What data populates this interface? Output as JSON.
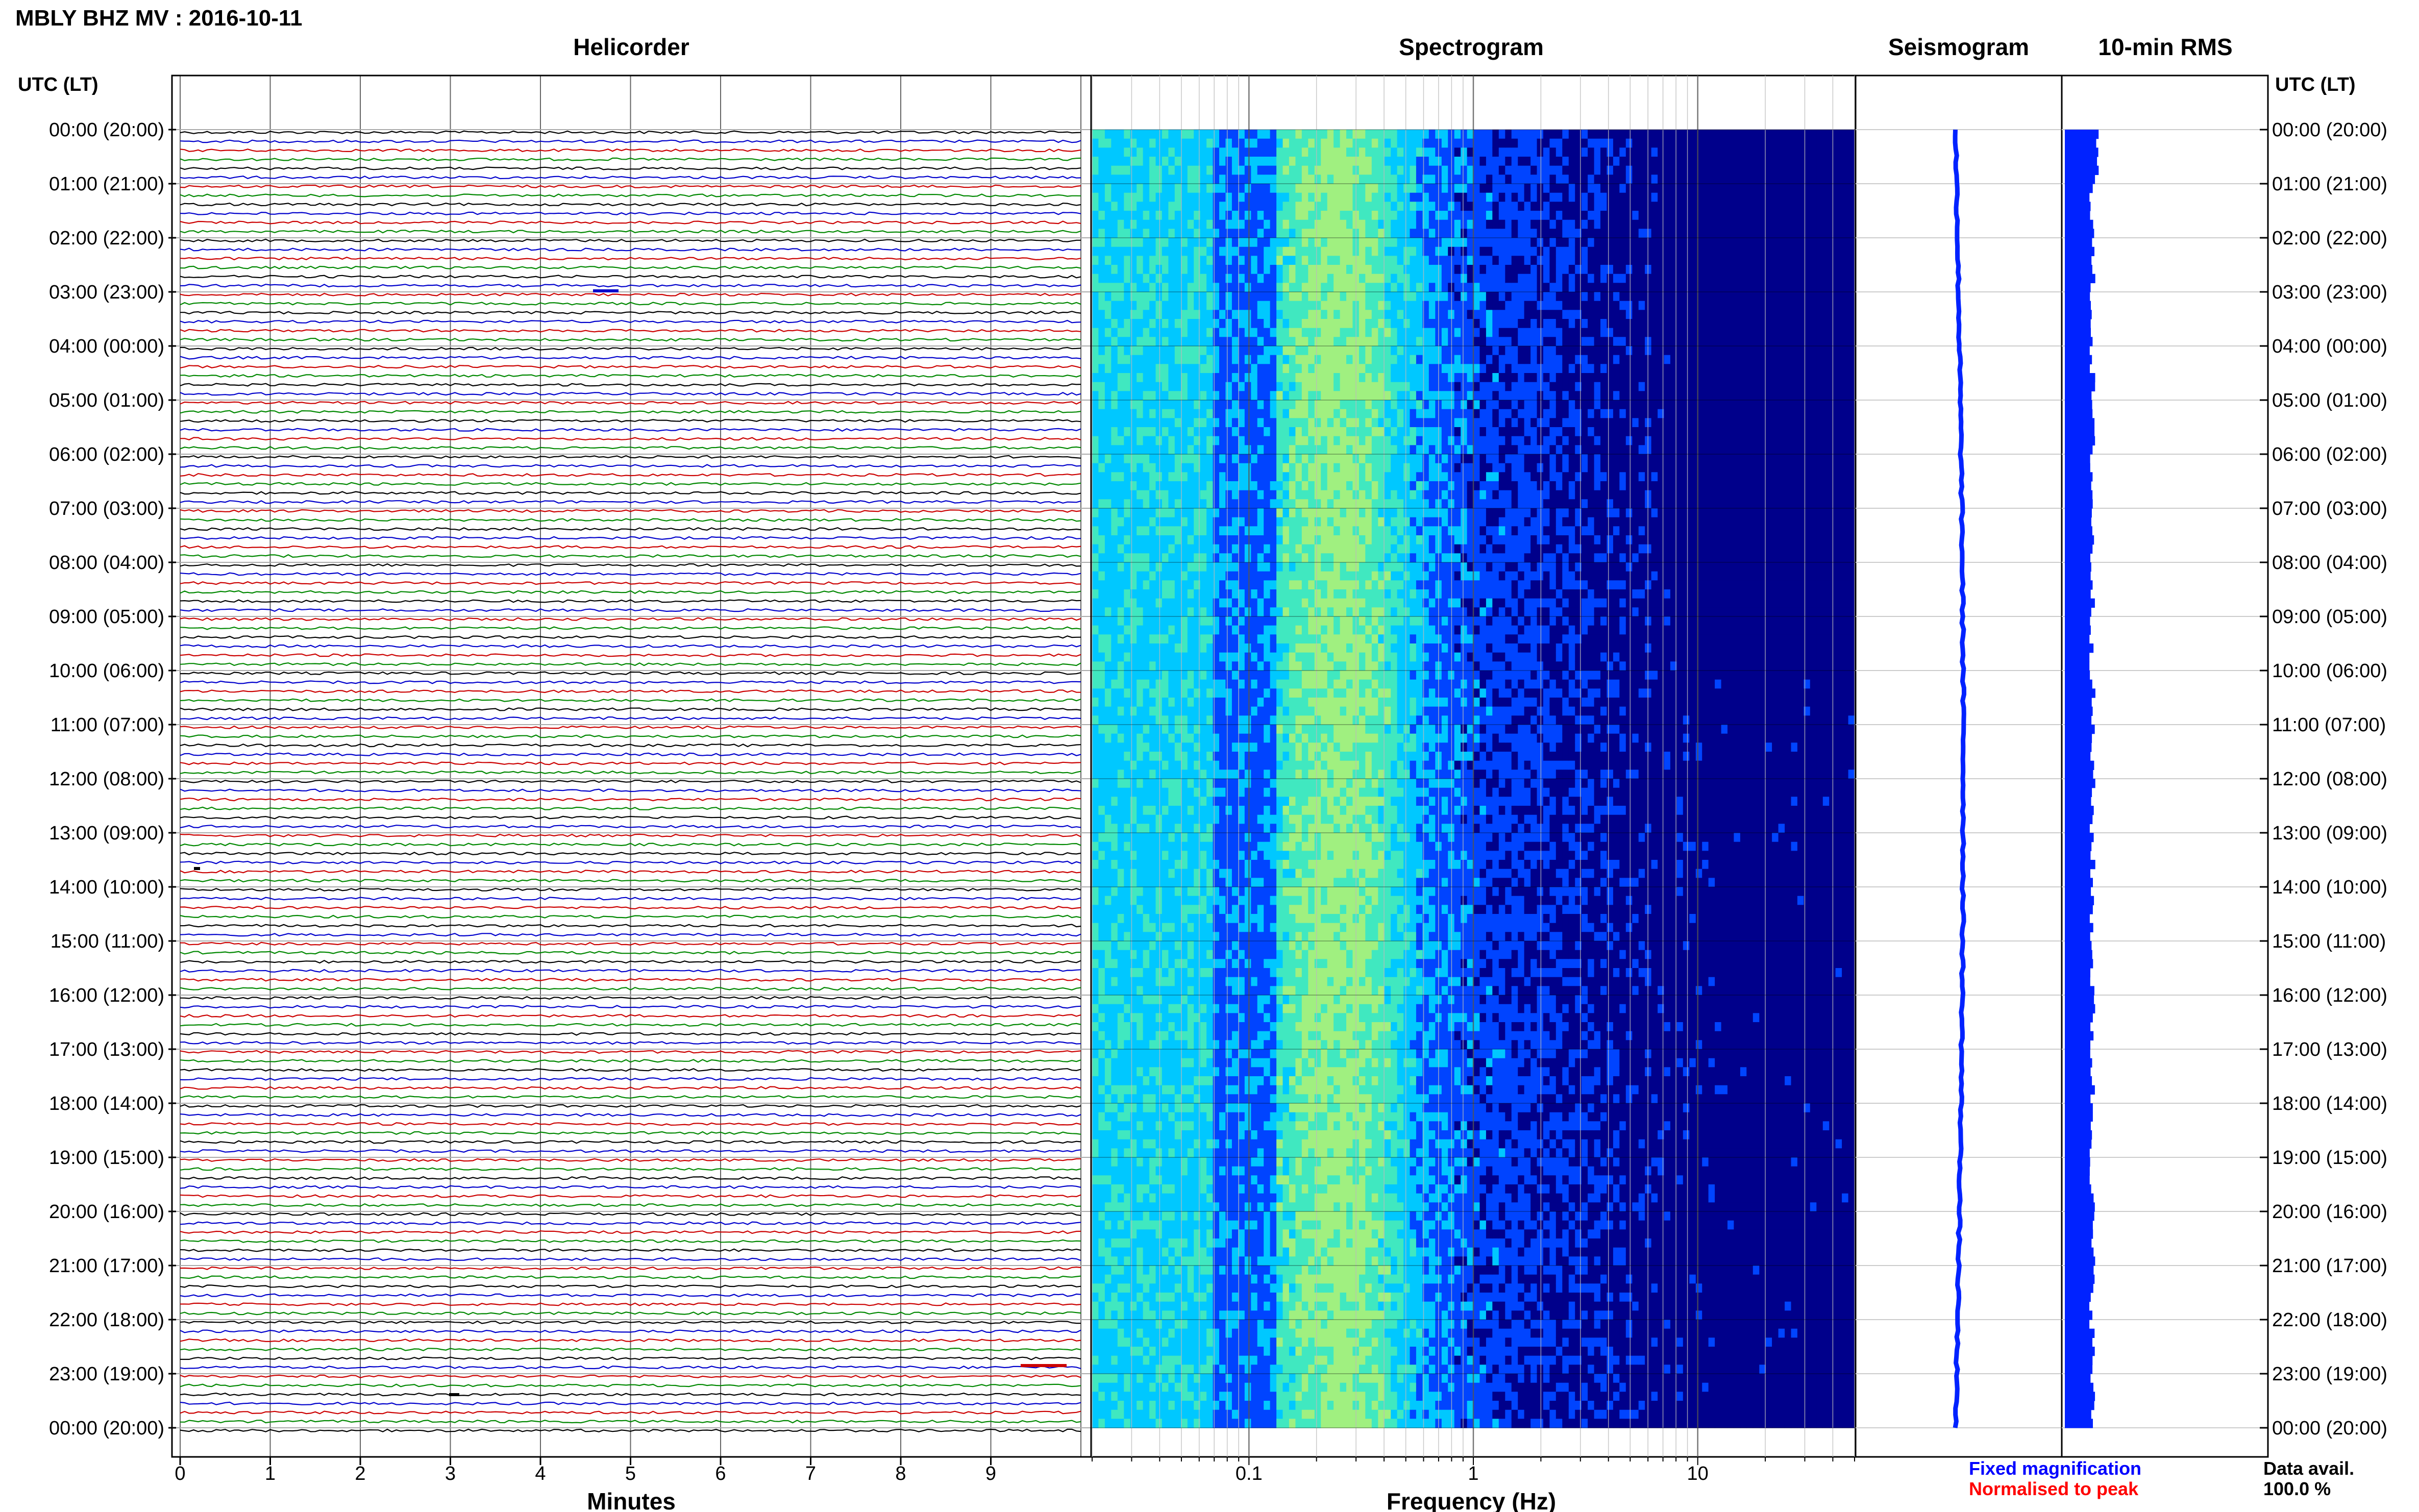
{
  "header": {
    "title": "MBLY BHZ MV : 2016-10-11"
  },
  "time_axis": {
    "left_label": "UTC (LT)",
    "right_label": "UTC (LT)",
    "ticks": [
      "00:00 (20:00)",
      "01:00 (21:00)",
      "02:00 (22:00)",
      "03:00 (23:00)",
      "04:00 (00:00)",
      "05:00 (01:00)",
      "06:00 (02:00)",
      "07:00 (03:00)",
      "08:00 (04:00)",
      "09:00 (05:00)",
      "10:00 (06:00)",
      "11:00 (07:00)",
      "12:00 (08:00)",
      "13:00 (09:00)",
      "14:00 (10:00)",
      "15:00 (11:00)",
      "16:00 (12:00)",
      "17:00 (13:00)",
      "18:00 (14:00)",
      "19:00 (15:00)",
      "20:00 (16:00)",
      "21:00 (17:00)",
      "22:00 (18:00)",
      "23:00 (19:00)",
      "00:00 (20:00)"
    ]
  },
  "footer": {
    "legend_fixed": "Fixed magnification",
    "legend_normalised": "Normalised to peak",
    "data_avail_label": "Data avail.",
    "data_avail_value": "100.0 %"
  },
  "colors": {
    "trace_cycle": [
      "#000000",
      "#0000cc",
      "#cc0000",
      "#008800"
    ],
    "seismogram": "#0022ff",
    "rms": "#0022ff",
    "fixed_magnification": "#0000ff",
    "normalised_to_peak": "#ff0000"
  },
  "chart_data": [
    {
      "type": "line",
      "title": "Helicorder",
      "xlabel": "Minutes",
      "ylabel": "UTC (LT)",
      "x_ticks": [
        "0",
        "1",
        "2",
        "3",
        "4",
        "5",
        "6",
        "7",
        "8",
        "9"
      ],
      "xlim": [
        0,
        10
      ],
      "lines_per_hour": 6,
      "hours": 24,
      "grid": true
    },
    {
      "type": "heatmap",
      "title": "Spectrogram",
      "xlabel": "Frequency (Hz)",
      "x_scale": "log",
      "xlim": [
        0.02,
        50
      ],
      "x_ticks": [
        "0.1",
        "1",
        "10"
      ],
      "peak_band_hz": [
        0.2,
        0.35
      ],
      "colormap": [
        "#00008b",
        "#0044ff",
        "#00c8ff",
        "#40e8c0",
        "#a0f080"
      ]
    },
    {
      "type": "line",
      "title": "Seismogram",
      "description_values": "24-hour waveform, near-constant offset"
    },
    {
      "type": "bar",
      "title": "10-min RMS"
    }
  ]
}
